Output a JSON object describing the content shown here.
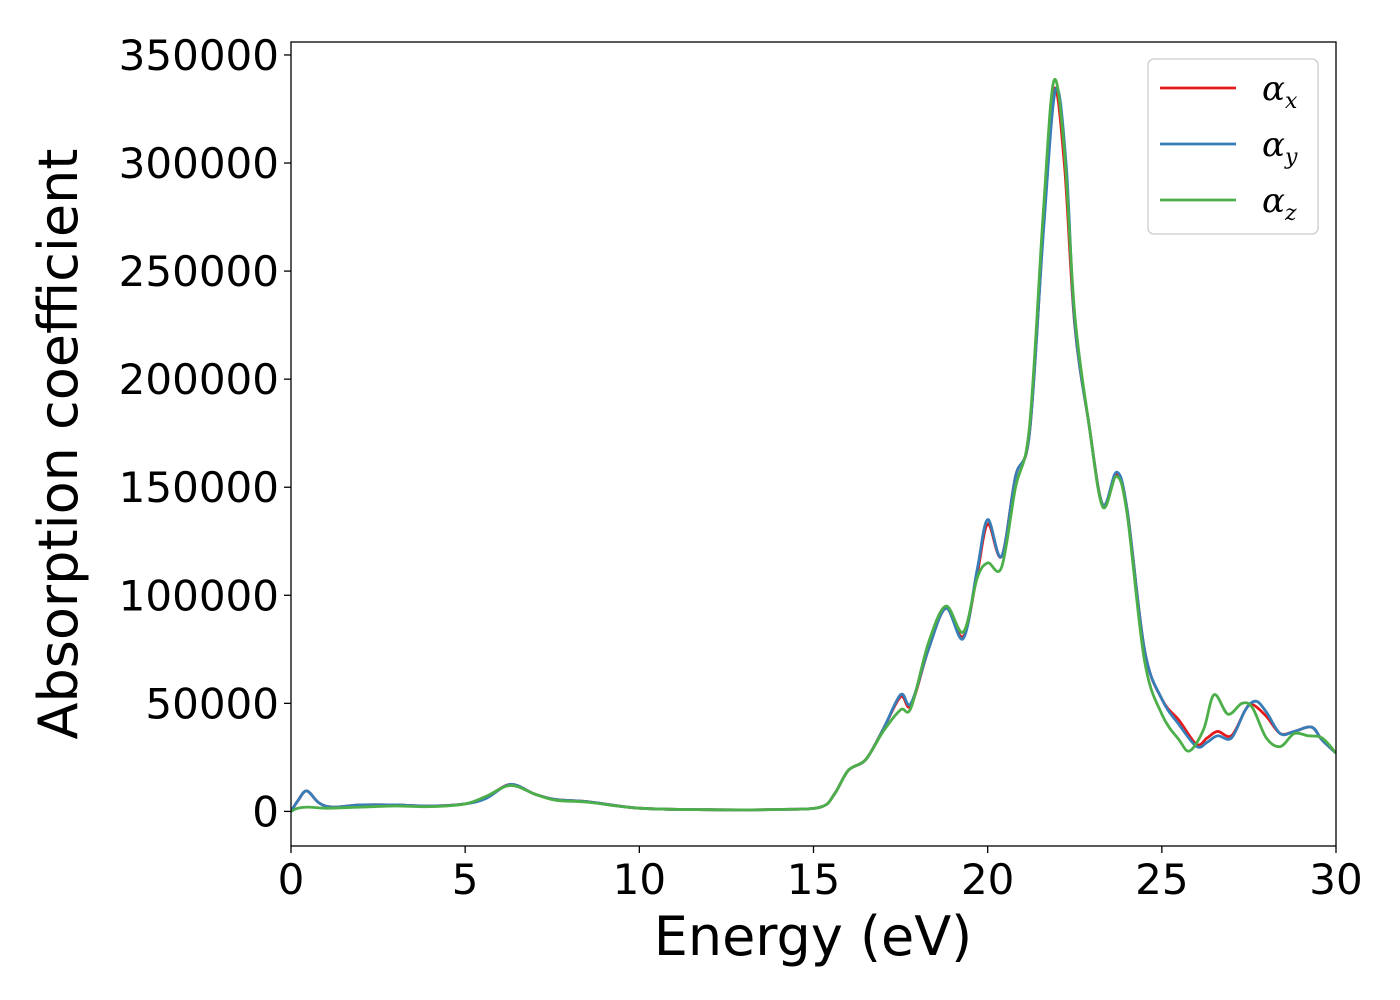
{
  "chart_data": {
    "type": "line",
    "xlabel": "Energy (eV)",
    "ylabel": "Absorption coefficient",
    "xlim": [
      0,
      30
    ],
    "ylim": [
      -16000,
      356000
    ],
    "xticks": [
      0,
      5,
      10,
      15,
      20,
      25,
      30
    ],
    "xtick_labels": [
      "0",
      "5",
      "10",
      "15",
      "20",
      "25",
      "30"
    ],
    "yticks": [
      0,
      50000,
      100000,
      150000,
      200000,
      250000,
      300000,
      350000
    ],
    "ytick_labels": [
      "0",
      "50000",
      "100000",
      "150000",
      "200000",
      "250000",
      "300000",
      "350000"
    ],
    "grid": false,
    "legend_position": "top-right",
    "series": [
      {
        "name": "α",
        "sub": "x",
        "color": "#e41a1c",
        "points": [
          [
            0,
            0
          ],
          [
            0.2,
            5000
          ],
          [
            0.45,
            9500
          ],
          [
            0.8,
            4000
          ],
          [
            1.2,
            2000
          ],
          [
            2,
            3000
          ],
          [
            3,
            3000
          ],
          [
            4,
            2500
          ],
          [
            5,
            3500
          ],
          [
            5.6,
            6500
          ],
          [
            6.3,
            12500
          ],
          [
            7,
            8000
          ],
          [
            7.6,
            5500
          ],
          [
            8.5,
            4500
          ],
          [
            10,
            1500
          ],
          [
            12,
            800
          ],
          [
            14,
            900
          ],
          [
            15.2,
            2000
          ],
          [
            15.6,
            8000
          ],
          [
            16,
            19000
          ],
          [
            16.5,
            24000
          ],
          [
            17,
            38000
          ],
          [
            17.5,
            53000
          ],
          [
            17.8,
            49000
          ],
          [
            18.3,
            75000
          ],
          [
            18.8,
            94000
          ],
          [
            19.3,
            81000
          ],
          [
            19.7,
            110000
          ],
          [
            20,
            133000
          ],
          [
            20.4,
            118000
          ],
          [
            20.8,
            155000
          ],
          [
            21.2,
            175000
          ],
          [
            21.6,
            270000
          ],
          [
            21.9,
            334000
          ],
          [
            22.2,
            300000
          ],
          [
            22.5,
            225000
          ],
          [
            22.9,
            180000
          ],
          [
            23.3,
            142000
          ],
          [
            23.7,
            156000
          ],
          [
            24,
            140000
          ],
          [
            24.5,
            75000
          ],
          [
            25,
            52000
          ],
          [
            25.5,
            42000
          ],
          [
            26,
            31000
          ],
          [
            26.3,
            34000
          ],
          [
            26.6,
            37000
          ],
          [
            27,
            35000
          ],
          [
            27.4,
            47000
          ],
          [
            27.6,
            49500
          ],
          [
            28,
            44000
          ],
          [
            28.4,
            36000
          ],
          [
            28.8,
            37000
          ],
          [
            29.3,
            39000
          ],
          [
            29.6,
            33000
          ],
          [
            30,
            27000
          ]
        ]
      },
      {
        "name": "α",
        "sub": "y",
        "color": "#377eb8",
        "points": [
          [
            0,
            0
          ],
          [
            0.2,
            5000
          ],
          [
            0.45,
            9500
          ],
          [
            0.8,
            4000
          ],
          [
            1.2,
            2000
          ],
          [
            2,
            3000
          ],
          [
            3,
            3000
          ],
          [
            4,
            2500
          ],
          [
            5,
            3500
          ],
          [
            5.6,
            6000
          ],
          [
            6.3,
            12500
          ],
          [
            7,
            8000
          ],
          [
            7.6,
            5500
          ],
          [
            8.5,
            4500
          ],
          [
            10,
            1500
          ],
          [
            12,
            800
          ],
          [
            14,
            900
          ],
          [
            15.2,
            2000
          ],
          [
            15.6,
            8000
          ],
          [
            16,
            19000
          ],
          [
            16.5,
            24000
          ],
          [
            17,
            38000
          ],
          [
            17.5,
            54000
          ],
          [
            17.8,
            50000
          ],
          [
            18.3,
            75000
          ],
          [
            18.8,
            94000
          ],
          [
            19.3,
            80000
          ],
          [
            19.7,
            112000
          ],
          [
            20,
            135000
          ],
          [
            20.4,
            118000
          ],
          [
            20.8,
            155000
          ],
          [
            21.2,
            175000
          ],
          [
            21.6,
            268000
          ],
          [
            21.95,
            334000
          ],
          [
            22.25,
            300000
          ],
          [
            22.5,
            226000
          ],
          [
            22.9,
            180000
          ],
          [
            23.3,
            142000
          ],
          [
            23.7,
            157000
          ],
          [
            24,
            140000
          ],
          [
            24.5,
            75000
          ],
          [
            25,
            52000
          ],
          [
            25.5,
            40000
          ],
          [
            26,
            30000
          ],
          [
            26.3,
            32000
          ],
          [
            26.6,
            35000
          ],
          [
            27,
            34000
          ],
          [
            27.4,
            47000
          ],
          [
            27.7,
            51000
          ],
          [
            28,
            46000
          ],
          [
            28.4,
            36000
          ],
          [
            28.8,
            37000
          ],
          [
            29.3,
            39000
          ],
          [
            29.6,
            33000
          ],
          [
            30,
            27000
          ]
        ]
      },
      {
        "name": "α",
        "sub": "z",
        "color": "#4daf4a",
        "points": [
          [
            0,
            0
          ],
          [
            0.2,
            1500
          ],
          [
            0.5,
            2000
          ],
          [
            1,
            1500
          ],
          [
            2,
            2000
          ],
          [
            3,
            2500
          ],
          [
            4,
            2200
          ],
          [
            5,
            3500
          ],
          [
            5.6,
            7000
          ],
          [
            6.3,
            12000
          ],
          [
            7,
            8000
          ],
          [
            7.6,
            5200
          ],
          [
            8.5,
            4300
          ],
          [
            10,
            1500
          ],
          [
            12,
            800
          ],
          [
            14,
            900
          ],
          [
            15.2,
            2000
          ],
          [
            15.6,
            8000
          ],
          [
            16,
            19000
          ],
          [
            16.5,
            24000
          ],
          [
            17,
            37000
          ],
          [
            17.5,
            47000
          ],
          [
            17.8,
            48000
          ],
          [
            18.3,
            78000
          ],
          [
            18.8,
            95000
          ],
          [
            19.3,
            83000
          ],
          [
            19.7,
            108000
          ],
          [
            20,
            115000
          ],
          [
            20.4,
            113000
          ],
          [
            20.8,
            150000
          ],
          [
            21.2,
            178000
          ],
          [
            21.6,
            278000
          ],
          [
            21.9,
            338000
          ],
          [
            22.2,
            306000
          ],
          [
            22.5,
            230000
          ],
          [
            22.9,
            180000
          ],
          [
            23.3,
            141000
          ],
          [
            23.7,
            155000
          ],
          [
            24,
            138000
          ],
          [
            24.5,
            70000
          ],
          [
            25,
            45000
          ],
          [
            25.5,
            33000
          ],
          [
            25.8,
            28000
          ],
          [
            26.2,
            38000
          ],
          [
            26.5,
            54000
          ],
          [
            26.9,
            45000
          ],
          [
            27.3,
            50000
          ],
          [
            27.6,
            48000
          ],
          [
            28,
            34000
          ],
          [
            28.4,
            30000
          ],
          [
            28.8,
            36000
          ],
          [
            29.2,
            35000
          ],
          [
            29.6,
            34000
          ],
          [
            30,
            27000
          ]
        ]
      }
    ]
  }
}
